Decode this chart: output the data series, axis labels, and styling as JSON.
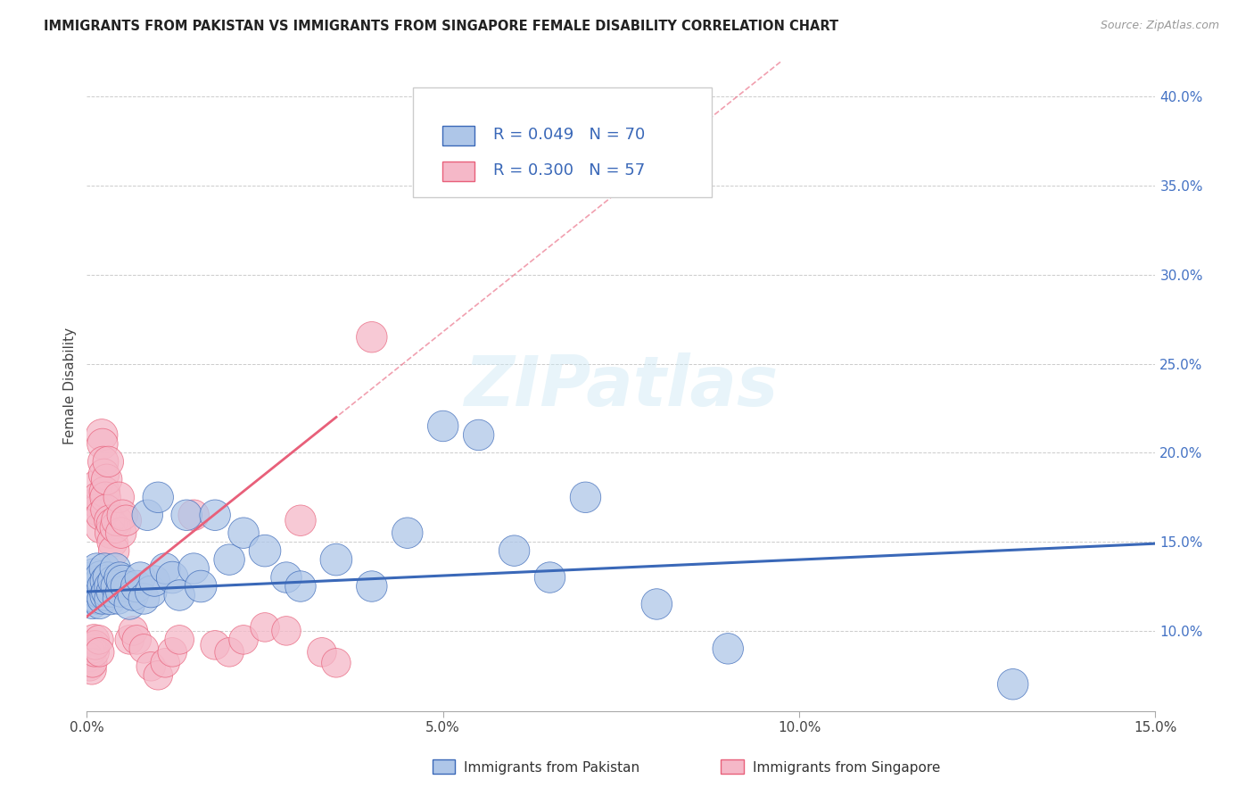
{
  "title": "IMMIGRANTS FROM PAKISTAN VS IMMIGRANTS FROM SINGAPORE FEMALE DISABILITY CORRELATION CHART",
  "source": "Source: ZipAtlas.com",
  "ylabel": "Female Disability",
  "ylabel_right_ticks": [
    0.1,
    0.15,
    0.2,
    0.25,
    0.3,
    0.35,
    0.4
  ],
  "ylabel_right_labels": [
    "10.0%",
    "15.0%",
    "20.0%",
    "25.0%",
    "30.0%",
    "35.0%",
    "40.0%"
  ],
  "xlim": [
    0.0,
    0.15
  ],
  "ylim": [
    0.055,
    0.42
  ],
  "watermark": "ZIPatlas",
  "legend_r1": "R = 0.049",
  "legend_n1": "N = 70",
  "legend_r2": "R = 0.300",
  "legend_n2": "N = 57",
  "series1_color": "#aec6e8",
  "series2_color": "#f5b8c8",
  "line1_color": "#3a68b8",
  "line2_color": "#e8607a",
  "pakistan_x": [
    0.0003,
    0.0004,
    0.0005,
    0.0006,
    0.0006,
    0.0007,
    0.0008,
    0.0009,
    0.001,
    0.001,
    0.0012,
    0.0013,
    0.0014,
    0.0015,
    0.0016,
    0.0017,
    0.0018,
    0.0019,
    0.002,
    0.002,
    0.0022,
    0.0023,
    0.0025,
    0.0026,
    0.0027,
    0.0028,
    0.003,
    0.0032,
    0.0033,
    0.0035,
    0.0037,
    0.004,
    0.0042,
    0.0044,
    0.0046,
    0.0048,
    0.005,
    0.0055,
    0.006,
    0.0065,
    0.007,
    0.0075,
    0.008,
    0.0085,
    0.009,
    0.0095,
    0.01,
    0.011,
    0.012,
    0.013,
    0.014,
    0.015,
    0.016,
    0.018,
    0.02,
    0.022,
    0.025,
    0.028,
    0.03,
    0.035,
    0.04,
    0.045,
    0.05,
    0.055,
    0.06,
    0.065,
    0.07,
    0.08,
    0.09,
    0.13
  ],
  "pakistan_y": [
    0.125,
    0.122,
    0.13,
    0.118,
    0.128,
    0.12,
    0.115,
    0.123,
    0.119,
    0.132,
    0.128,
    0.122,
    0.135,
    0.118,
    0.125,
    0.12,
    0.115,
    0.128,
    0.122,
    0.13,
    0.118,
    0.125,
    0.135,
    0.12,
    0.128,
    0.122,
    0.13,
    0.125,
    0.118,
    0.122,
    0.128,
    0.135,
    0.125,
    0.118,
    0.13,
    0.122,
    0.128,
    0.125,
    0.115,
    0.12,
    0.125,
    0.13,
    0.118,
    0.165,
    0.122,
    0.128,
    0.175,
    0.135,
    0.13,
    0.12,
    0.165,
    0.135,
    0.125,
    0.165,
    0.14,
    0.155,
    0.145,
    0.13,
    0.125,
    0.14,
    0.125,
    0.155,
    0.215,
    0.21,
    0.145,
    0.13,
    0.175,
    0.115,
    0.09,
    0.07
  ],
  "pakistan_size": [
    30,
    25,
    28,
    25,
    30,
    28,
    26,
    28,
    30,
    28,
    28,
    26,
    28,
    28,
    30,
    28,
    26,
    28,
    35,
    32,
    28,
    30,
    28,
    28,
    30,
    28,
    28,
    28,
    30,
    28,
    28,
    28,
    30,
    28,
    28,
    28,
    30,
    28,
    28,
    28,
    30,
    28,
    28,
    28,
    30,
    28,
    28,
    28,
    30,
    28,
    28,
    28,
    30,
    28,
    28,
    28,
    30,
    28,
    28,
    30,
    28,
    28,
    28,
    28,
    28,
    28,
    28,
    28,
    28,
    28
  ],
  "singapore_x": [
    0.0003,
    0.0004,
    0.0005,
    0.0006,
    0.0007,
    0.0008,
    0.0009,
    0.001,
    0.0011,
    0.0012,
    0.0013,
    0.0014,
    0.0015,
    0.0016,
    0.0017,
    0.0018,
    0.0019,
    0.002,
    0.0021,
    0.0022,
    0.0023,
    0.0024,
    0.0025,
    0.0026,
    0.0027,
    0.0028,
    0.003,
    0.0032,
    0.0033,
    0.0035,
    0.0036,
    0.0038,
    0.004,
    0.0042,
    0.0045,
    0.0048,
    0.005,
    0.0055,
    0.006,
    0.0065,
    0.007,
    0.008,
    0.009,
    0.01,
    0.011,
    0.012,
    0.013,
    0.015,
    0.018,
    0.02,
    0.022,
    0.025,
    0.028,
    0.03,
    0.033,
    0.035,
    0.04
  ],
  "singapore_y": [
    0.085,
    0.08,
    0.088,
    0.092,
    0.078,
    0.082,
    0.09,
    0.095,
    0.088,
    0.092,
    0.172,
    0.168,
    0.182,
    0.175,
    0.095,
    0.088,
    0.158,
    0.165,
    0.21,
    0.205,
    0.195,
    0.188,
    0.178,
    0.175,
    0.168,
    0.185,
    0.195,
    0.162,
    0.155,
    0.16,
    0.15,
    0.145,
    0.158,
    0.162,
    0.175,
    0.155,
    0.165,
    0.162,
    0.095,
    0.1,
    0.095,
    0.09,
    0.08,
    0.075,
    0.082,
    0.088,
    0.095,
    0.165,
    0.092,
    0.088,
    0.095,
    0.102,
    0.1,
    0.162,
    0.088,
    0.082,
    0.265
  ],
  "singapore_size": [
    25,
    25,
    25,
    25,
    25,
    25,
    25,
    28,
    25,
    25,
    28,
    28,
    28,
    28,
    25,
    25,
    28,
    28,
    30,
    28,
    28,
    28,
    28,
    28,
    28,
    28,
    28,
    28,
    28,
    28,
    28,
    28,
    28,
    28,
    28,
    28,
    28,
    28,
    25,
    25,
    25,
    25,
    25,
    25,
    25,
    25,
    25,
    28,
    25,
    25,
    25,
    25,
    25,
    28,
    25,
    25,
    28
  ]
}
